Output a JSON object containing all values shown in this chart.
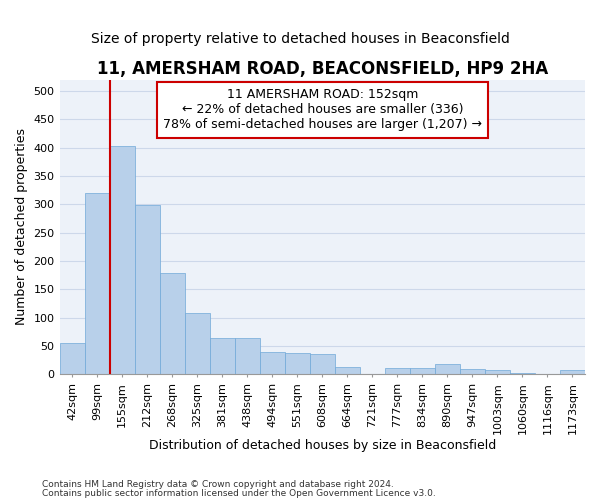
{
  "title": "11, AMERSHAM ROAD, BEACONSFIELD, HP9 2HA",
  "subtitle": "Size of property relative to detached houses in Beaconsfield",
  "xlabel": "Distribution of detached houses by size in Beaconsfield",
  "ylabel": "Number of detached properties",
  "footer1": "Contains HM Land Registry data © Crown copyright and database right 2024.",
  "footer2": "Contains public sector information licensed under the Open Government Licence v3.0.",
  "categories": [
    "42sqm",
    "99sqm",
    "155sqm",
    "212sqm",
    "268sqm",
    "325sqm",
    "381sqm",
    "438sqm",
    "494sqm",
    "551sqm",
    "608sqm",
    "664sqm",
    "721sqm",
    "777sqm",
    "834sqm",
    "890sqm",
    "947sqm",
    "1003sqm",
    "1060sqm",
    "1116sqm",
    "1173sqm"
  ],
  "values": [
    55,
    320,
    403,
    298,
    178,
    108,
    65,
    65,
    40,
    38,
    36,
    13,
    0,
    12,
    12,
    18,
    10,
    7,
    3,
    0,
    7
  ],
  "bar_color": "#b8d0ea",
  "bar_edge_color": "#6fa8d8",
  "marker_index": 2,
  "marker_color": "#cc0000",
  "annotation_line1": "11 AMERSHAM ROAD: 152sqm",
  "annotation_line2": "← 22% of detached houses are smaller (336)",
  "annotation_line3": "78% of semi-detached houses are larger (1,207) →",
  "annotation_box_color": "#cc0000",
  "ylim": [
    0,
    520
  ],
  "yticks": [
    0,
    50,
    100,
    150,
    200,
    250,
    300,
    350,
    400,
    450,
    500
  ],
  "grid_color": "#cdd8ea",
  "bg_color": "#edf2f9",
  "title_fontsize": 12,
  "subtitle_fontsize": 10,
  "ylabel_fontsize": 9,
  "xlabel_fontsize": 9,
  "tick_fontsize": 8
}
